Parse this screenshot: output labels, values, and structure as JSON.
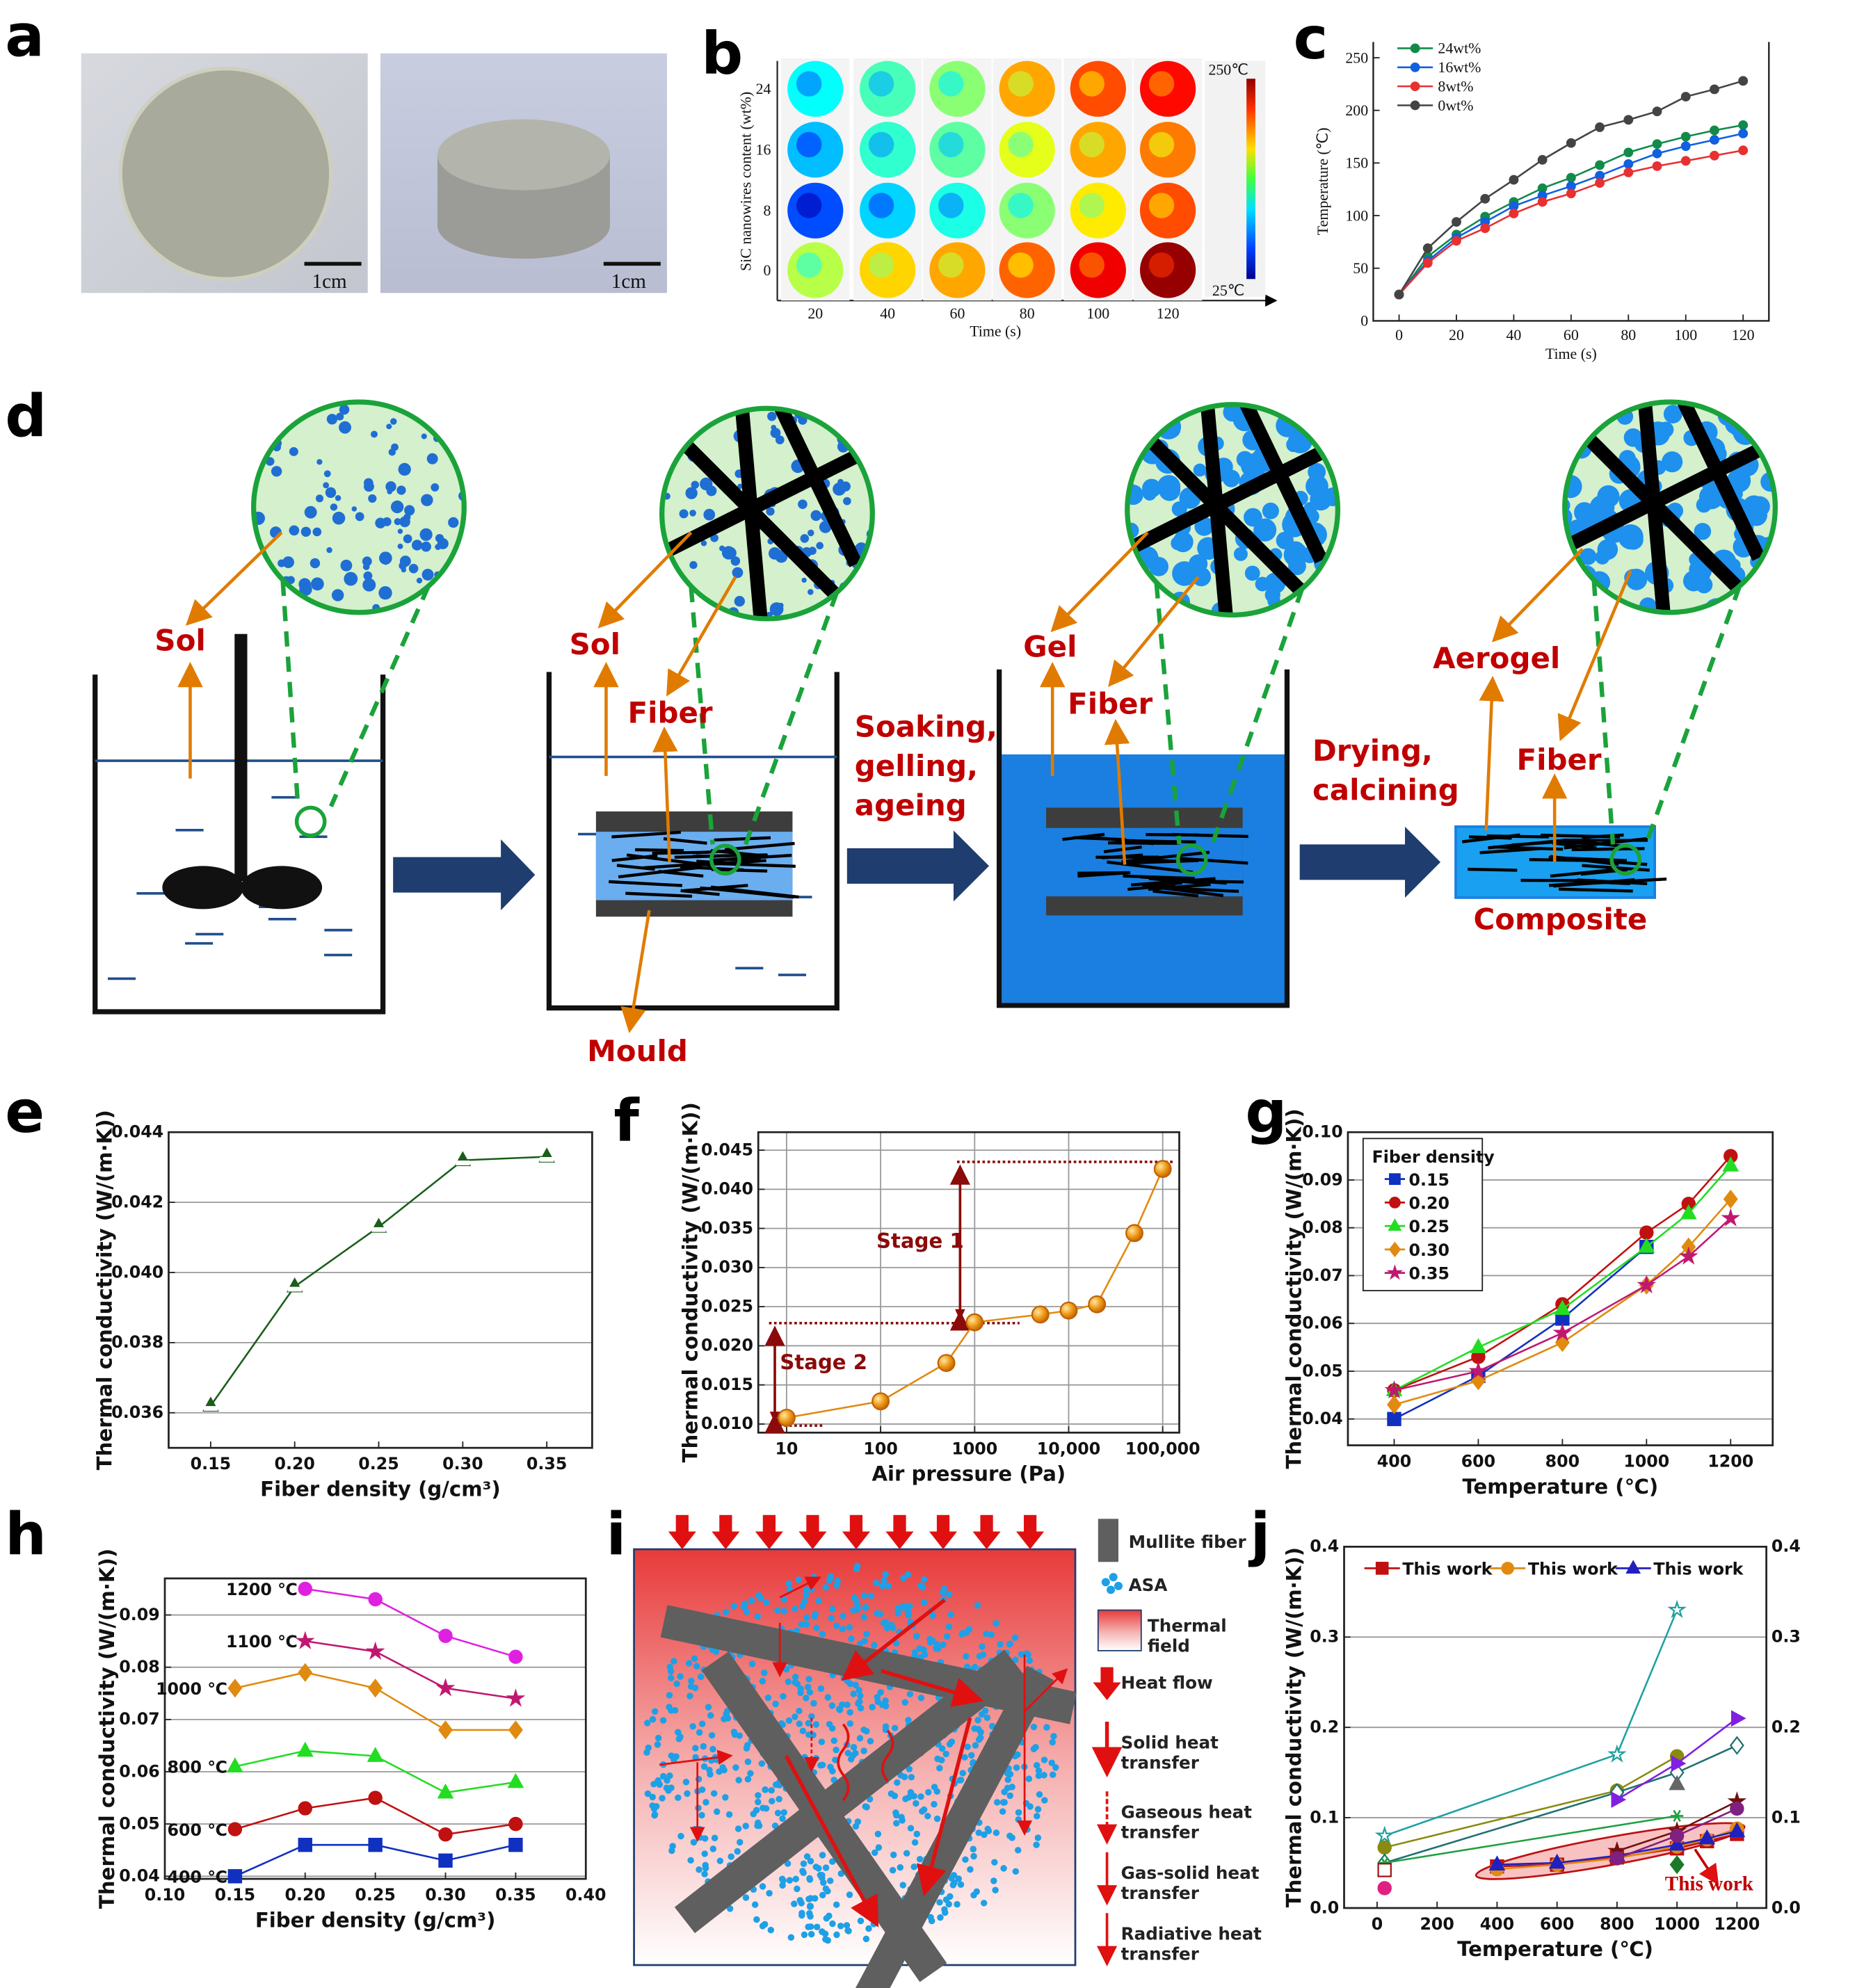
{
  "panel_labels": {
    "a": "a",
    "b": "b",
    "c": "c",
    "d": "d",
    "e": "e",
    "f": "f",
    "g": "g",
    "h": "h",
    "i": "i",
    "j": "j"
  },
  "panel_a": {
    "scale_bar_1": "1cm",
    "scale_bar_2": "1cm"
  },
  "panel_b": {
    "ylabel": "SiC  nanowires content (wt%)",
    "xlabel": "Time (s)",
    "rows": [
      "24",
      "16",
      "8",
      "0"
    ],
    "cols": [
      "20",
      "40",
      "60",
      "80",
      "100",
      "120"
    ],
    "colorbar_max": "250℃",
    "colorbar_min": "25℃",
    "colorbar_range": [
      25,
      250
    ],
    "approx_temperatures": [
      [
        110,
        125,
        140,
        185,
        205,
        220
      ],
      [
        95,
        120,
        130,
        160,
        185,
        195
      ],
      [
        70,
        100,
        115,
        140,
        170,
        205
      ],
      [
        150,
        175,
        185,
        200,
        225,
        245
      ]
    ]
  },
  "panel_d": {
    "sol_1": "Sol",
    "sol_2": "Sol",
    "fiber_2": "Fiber",
    "mould": "Mould",
    "step_1": [
      "Soaking,",
      "gelling,",
      "ageing"
    ],
    "gel": "Gel",
    "fiber_3": "Fiber",
    "step_2": [
      "Drying,",
      "calcining"
    ],
    "aerogel": "Aerogel",
    "fiber_4": "Fiber",
    "composite": "Composite",
    "colors": {
      "label": "#c00000",
      "arrow": "#e07b00",
      "water": "#1f7fe0",
      "liquid_line": "#1f4e8c",
      "inset_fill": "#d4f0cc",
      "inset_border": "#1aa33a",
      "dots": "#1f6ed4",
      "process_arrow": "#1f3d6e"
    }
  },
  "panel_i": {
    "legend": [
      {
        "icon": "mullite-fiber-icon",
        "lines": [
          "Mullite fiber"
        ]
      },
      {
        "icon": "asa-icon",
        "lines": [
          "ASA"
        ]
      },
      {
        "icon": "thermal-field-icon",
        "lines": [
          "Thermal",
          "field"
        ]
      },
      {
        "icon": "heat-flow-icon",
        "lines": [
          "Heat flow"
        ]
      },
      {
        "icon": "solid-heat-transfer-icon",
        "lines": [
          "Solid heat",
          "transfer"
        ]
      },
      {
        "icon": "gaseous-heat-transfer-icon",
        "lines": [
          "Gaseous heat",
          "transfer"
        ]
      },
      {
        "icon": "gas-solid-heat-transfer-icon",
        "lines": [
          "Gas-solid heat",
          "transfer"
        ]
      },
      {
        "icon": "radiative-heat-transfer-icon",
        "lines": [
          "Radiative heat",
          "transfer"
        ]
      }
    ],
    "colors": {
      "fiber": "#5f5f5f",
      "asa": "#1ea0e6",
      "heat": "#e01010"
    }
  },
  "chart_data": [
    {
      "id": "c",
      "type": "line",
      "xlabel": "Time (s)",
      "ylabel": "Temperature (℃)",
      "xlim": [
        -9,
        129
      ],
      "ylim": [
        0,
        265
      ],
      "xticks": [
        0,
        20,
        40,
        60,
        80,
        100,
        120
      ],
      "xtick_labels": [
        "0",
        "20",
        "40",
        "60",
        "80",
        "100",
        "120"
      ],
      "yticks": [
        0,
        50,
        100,
        150,
        200,
        250
      ],
      "ytick_labels": [
        "0",
        "50",
        "100",
        "150",
        "200",
        "250"
      ],
      "grid": "none",
      "legend": "top-left",
      "x": [
        0,
        10,
        20,
        30,
        40,
        50,
        60,
        70,
        80,
        90,
        100,
        110,
        120
      ],
      "series": [
        {
          "name": "24wt%",
          "color": "#138a4a",
          "marker": "circle",
          "values": [
            25,
            61,
            82,
            99,
            113,
            126,
            136,
            148,
            160,
            168,
            175,
            181,
            186
          ]
        },
        {
          "name": "16wt%",
          "color": "#1060e0",
          "marker": "circle",
          "values": [
            25,
            57,
            79,
            94,
            109,
            119,
            128,
            138,
            149,
            159,
            166,
            172,
            178
          ]
        },
        {
          "name": "8wt%",
          "color": "#e83030",
          "marker": "circle",
          "values": [
            25,
            55,
            76,
            88,
            102,
            113,
            121,
            131,
            141,
            147,
            152,
            157,
            162
          ]
        },
        {
          "name": "0wt%",
          "color": "#444444",
          "marker": "circle",
          "values": [
            25,
            69,
            94,
            116,
            134,
            153,
            169,
            184,
            191,
            199,
            213,
            220,
            228
          ]
        }
      ]
    },
    {
      "id": "e",
      "type": "line",
      "xlabel": "Fiber density (g/cm³)",
      "ylabel": "Thermal conductivity (W/(m·K))",
      "xlim": [
        0.125,
        0.377
      ],
      "ylim": [
        0.035,
        0.044
      ],
      "xticks": [
        0.15,
        0.2,
        0.25,
        0.3,
        0.35
      ],
      "xtick_labels": [
        "0.15",
        "0.20",
        "0.25",
        "0.30",
        "0.35"
      ],
      "yticks": [
        0.036,
        0.038,
        0.04,
        0.042,
        0.044
      ],
      "ytick_labels": [
        "0.036",
        "0.038",
        "0.040",
        "0.042",
        "0.044"
      ],
      "grid": "horizontal",
      "x": [
        0.15,
        0.2,
        0.25,
        0.3,
        0.35
      ],
      "series": [
        {
          "color": "#1a5e1a",
          "marker": "triangle-half",
          "values": [
            0.0362,
            0.0396,
            0.0413,
            0.0432,
            0.0433
          ]
        }
      ]
    },
    {
      "id": "f",
      "type": "line",
      "xscale": "log",
      "xlabel": "Air pressure (Pa)",
      "ylabel": "Thermal conductivity (W/(m·K))",
      "xlim": [
        5,
        150000
      ],
      "ylim": [
        0.0089,
        0.0473
      ],
      "xticks": [
        10,
        100,
        1000,
        10000,
        100000
      ],
      "xtick_labels": [
        "10",
        "100",
        "1000",
        "10,000",
        "100,000"
      ],
      "yticks": [
        0.01,
        0.015,
        0.02,
        0.025,
        0.03,
        0.035,
        0.04,
        0.045
      ],
      "ytick_labels": [
        "0.010",
        "0.015",
        "0.020",
        "0.025",
        "0.030",
        "0.035",
        "0.040",
        "0.045"
      ],
      "grid": "both",
      "x": [
        10,
        100,
        500,
        1000,
        5000,
        10000,
        20000,
        50000,
        100000
      ],
      "series": [
        {
          "color": "#e08a10",
          "marker": "ball",
          "values": [
            0.0108,
            0.0129,
            0.0178,
            0.023,
            0.024,
            0.0245,
            0.0253,
            0.0344,
            0.0426
          ]
        }
      ],
      "annotations": {
        "color": "#8b0a0a",
        "stage_1": {
          "label": "Stage 1",
          "from": 0.0229,
          "to": 0.0435,
          "at_x": 700
        },
        "stage_2": {
          "label": "Stage 2",
          "from": 0.0098,
          "to": 0.0229,
          "at_x": 7.5
        },
        "dotted_levels": [
          {
            "y": 0.0435,
            "x": [
              650,
              130000
            ]
          },
          {
            "y": 0.0229,
            "x": [
              6.5,
              3000
            ]
          },
          {
            "y": 0.0098,
            "x": [
              6.5,
              24
            ]
          }
        ]
      }
    },
    {
      "id": "g",
      "type": "line",
      "xlabel": "Temperature (℃)",
      "ylabel": "Thermal conductivity (W/(m·K))",
      "xlim": [
        290,
        1300
      ],
      "ylim": [
        0.0345,
        0.1
      ],
      "xticks": [
        400,
        600,
        800,
        1000,
        1200
      ],
      "xtick_labels": [
        "400",
        "600",
        "800",
        "1000",
        "1200"
      ],
      "yticks": [
        0.04,
        0.05,
        0.06,
        0.07,
        0.08,
        0.09,
        0.1
      ],
      "ytick_labels": [
        "0.04",
        "0.05",
        "0.06",
        "0.07",
        "0.08",
        "0.09",
        "0.10"
      ],
      "grid": "horizontal",
      "legend": "top-left",
      "legend_title": "Fiber density",
      "x": [
        400,
        600,
        800,
        1000,
        1100,
        1200
      ],
      "series": [
        {
          "name": "0.15",
          "color": "#1030c0",
          "marker": "square",
          "values": [
            0.04,
            0.049,
            0.061,
            0.076,
            null,
            null
          ]
        },
        {
          "name": "0.20",
          "color": "#c01010",
          "marker": "circle",
          "values": [
            0.046,
            0.053,
            0.064,
            0.079,
            0.085,
            0.095
          ]
        },
        {
          "name": "0.25",
          "color": "#22dd22",
          "marker": "triangle",
          "values": [
            0.046,
            0.055,
            0.063,
            0.076,
            0.083,
            0.093
          ]
        },
        {
          "name": "0.30",
          "color": "#e08a10",
          "marker": "diamond",
          "values": [
            0.043,
            0.048,
            0.056,
            0.068,
            0.076,
            0.086
          ]
        },
        {
          "name": "0.35",
          "color": "#c01870",
          "marker": "star",
          "values": [
            0.046,
            0.05,
            0.058,
            0.068,
            0.074,
            0.082
          ]
        }
      ]
    },
    {
      "id": "h",
      "type": "line",
      "xlabel": "Fiber density (g/cm³)",
      "ylabel": "Thermal conductivity (W/(m·K))",
      "xlim": [
        0.1,
        0.4
      ],
      "ylim": [
        0.0395,
        0.097
      ],
      "xticks": [
        0.1,
        0.15,
        0.2,
        0.25,
        0.3,
        0.35,
        0.4
      ],
      "xtick_labels": [
        "0.10",
        "0.15",
        "0.20",
        "0.25",
        "0.30",
        "0.35",
        "0.40"
      ],
      "yticks": [
        0.04,
        0.05,
        0.06,
        0.07,
        0.08,
        0.09
      ],
      "ytick_labels": [
        "0.04",
        "0.05",
        "0.06",
        "0.07",
        "0.08",
        "0.09"
      ],
      "grid": "horizontal",
      "x": [
        0.15,
        0.2,
        0.25,
        0.3,
        0.35
      ],
      "series": [
        {
          "name": "400 ℃",
          "color": "#1030c0",
          "marker": "square",
          "values": [
            0.04,
            0.046,
            0.046,
            0.043,
            0.046
          ]
        },
        {
          "name": "600 ℃",
          "color": "#c01010",
          "marker": "circle",
          "values": [
            0.049,
            0.053,
            0.055,
            0.048,
            0.05
          ]
        },
        {
          "name": "800 ℃",
          "color": "#22dd22",
          "marker": "triangle",
          "values": [
            0.061,
            0.064,
            0.063,
            0.056,
            0.058
          ]
        },
        {
          "name": "1000 ℃",
          "color": "#e08a10",
          "marker": "diamond",
          "values": [
            0.076,
            0.079,
            0.076,
            0.068,
            0.068
          ]
        },
        {
          "name": "1100 ℃",
          "color": "#c01870",
          "marker": "star",
          "values": [
            null,
            0.085,
            0.083,
            0.076,
            0.074
          ]
        },
        {
          "name": "1200 ℃",
          "color": "#e020e0",
          "marker": "circle",
          "values": [
            null,
            0.095,
            0.093,
            0.086,
            0.082
          ]
        }
      ]
    },
    {
      "id": "j",
      "type": "line",
      "xlabel": "Temperature (℃)",
      "ylabel": "Thermal conductivity (W/(m·K))",
      "xlim": [
        -110,
        1298
      ],
      "ylim": [
        0,
        0.4
      ],
      "xticks": [
        0,
        200,
        400,
        600,
        800,
        1000,
        1200
      ],
      "xtick_labels": [
        "0",
        "200",
        "400",
        "600",
        "800",
        "1000",
        "1200"
      ],
      "yticks": [
        0,
        0.1,
        0.2,
        0.3,
        0.4
      ],
      "ytick_labels": [
        "0.0",
        "0.1",
        "0.2",
        "0.3",
        "0.4"
      ],
      "right_axis": true,
      "grid": "horizontal",
      "legend": "top",
      "annotation": {
        "label": "This work",
        "color": "#c00000"
      },
      "series": [
        {
          "name": "This work",
          "legend": true,
          "color": "#c01010",
          "marker": "square",
          "x": [
            400,
            600,
            800,
            1000,
            1100,
            1200
          ],
          "values": [
            0.046,
            0.048,
            0.056,
            0.066,
            0.074,
            0.082
          ]
        },
        {
          "name": "This work",
          "legend": true,
          "color": "#e08a10",
          "marker": "circle",
          "x": [
            400,
            600,
            800,
            1000,
            1100,
            1200
          ],
          "values": [
            0.043,
            0.048,
            0.055,
            0.068,
            0.076,
            0.088
          ]
        },
        {
          "name": "This work",
          "legend": true,
          "color": "#2020c0",
          "marker": "triangle",
          "x": [
            400,
            600,
            800,
            1000,
            1100,
            1200
          ],
          "values": [
            0.048,
            0.05,
            0.058,
            0.07,
            0.077,
            0.085
          ]
        },
        {
          "color": "#20a0a0",
          "marker": "star-open",
          "x": [
            25,
            800,
            1000
          ],
          "values": [
            0.08,
            0.17,
            0.33
          ]
        },
        {
          "color": "#8a8a10",
          "marker": "circle",
          "x": [
            25,
            800,
            1000
          ],
          "values": [
            0.067,
            0.13,
            0.168
          ]
        },
        {
          "color": "#207070",
          "marker": "diamond-open",
          "x": [
            25,
            800,
            1000,
            1200
          ],
          "values": [
            0.05,
            0.128,
            0.15,
            0.18
          ]
        },
        {
          "color": "#8020e0",
          "marker": "rtriangle",
          "x": [
            800,
            1000,
            1200
          ],
          "values": [
            0.12,
            0.16,
            0.21
          ]
        },
        {
          "color": "#20a040",
          "marker": "asterisk",
          "x": [
            25,
            1000
          ],
          "values": [
            0.05,
            0.102
          ]
        },
        {
          "color": "#701010",
          "marker": "star",
          "x": [
            800,
            1000,
            1200
          ],
          "values": [
            0.063,
            0.085,
            0.118
          ]
        },
        {
          "color": "#802080",
          "marker": "circle",
          "x": [
            800,
            1000,
            1200
          ],
          "values": [
            0.055,
            0.08,
            0.11
          ]
        },
        {
          "color": "#666666",
          "marker": "triangle",
          "x": [
            1000
          ],
          "values": [
            0.137
          ]
        },
        {
          "color": "#1a7a2a",
          "marker": "diamond",
          "x": [
            1000
          ],
          "values": [
            0.048
          ]
        },
        {
          "color": "#e02080",
          "marker": "circle",
          "x": [
            25
          ],
          "values": [
            0.022
          ]
        },
        {
          "color": "#a01010",
          "marker": "square-open",
          "x": [
            25
          ],
          "values": [
            0.042
          ]
        }
      ]
    }
  ]
}
